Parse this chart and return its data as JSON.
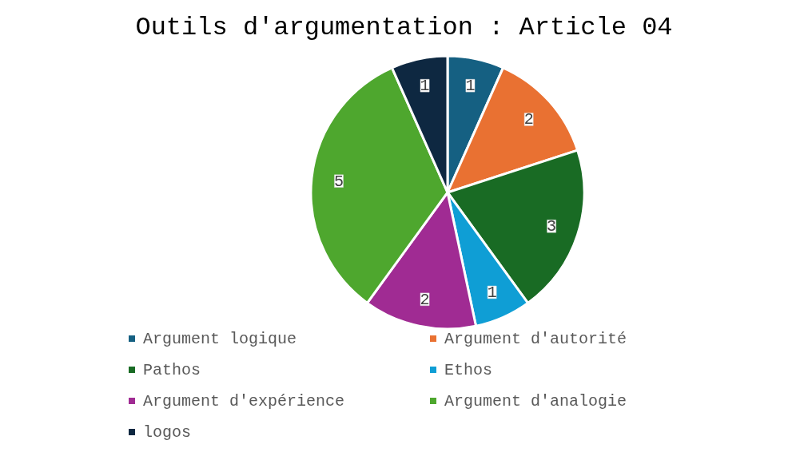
{
  "chart_data": {
    "type": "pie",
    "title": "Outils d'argumentation : Article 04",
    "categories": [
      "Argument logique",
      "Argument d'autorité",
      "Pathos",
      "Ethos",
      "Argument d'expérience",
      "Argument d'analogie",
      "logos"
    ],
    "values": [
      1,
      2,
      3,
      1,
      2,
      5,
      1
    ],
    "colors": [
      "#156082",
      "#e97132",
      "#196b24",
      "#0f9ed5",
      "#a02b93",
      "#4ea72e",
      "#0e2841"
    ],
    "data_labels": true,
    "legend": "bottom"
  }
}
